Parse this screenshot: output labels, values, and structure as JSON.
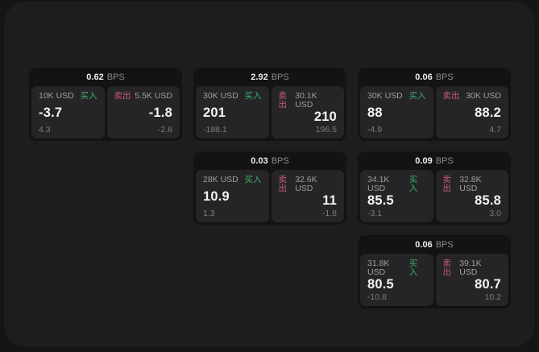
{
  "app": {
    "description_labels": {
      "buy": "买入",
      "sell": "卖出",
      "bps_unit": "BPS"
    },
    "colors": {
      "outer_background": "#151515",
      "surface_background": "#1d1d1e",
      "card_background": "#131314",
      "panel_background": "#252527",
      "buy_green": "#3dac6b",
      "sell_red": "#c85b70"
    }
  },
  "cards": [
    {
      "grid": {
        "row": 1,
        "col": 1
      },
      "bps": "0.62",
      "bps_unit": "BPS",
      "buy": {
        "amount": "10K USD",
        "side": "买入",
        "price": "-3.7",
        "delta": "4.3"
      },
      "sell": {
        "side": "卖出",
        "amount": "5.5K USD",
        "price": "-1.8",
        "delta": "-2.6"
      }
    },
    {
      "grid": {
        "row": 1,
        "col": 2
      },
      "bps": "2.92",
      "bps_unit": "BPS",
      "buy": {
        "amount": "30K USD",
        "side": "买入",
        "price": "201",
        "delta": "-188.1"
      },
      "sell": {
        "side": "卖出",
        "amount": "30.1K USD",
        "price": "210",
        "delta": "196.5"
      }
    },
    {
      "grid": {
        "row": 1,
        "col": 3
      },
      "bps": "0.06",
      "bps_unit": "BPS",
      "buy": {
        "amount": "30K USD",
        "side": "买入",
        "price": "88",
        "delta": "-4.9"
      },
      "sell": {
        "side": "卖出",
        "amount": "30K USD",
        "price": "88.2",
        "delta": "4.7"
      }
    },
    {
      "grid": {
        "row": 2,
        "col": 2
      },
      "bps": "0.03",
      "bps_unit": "BPS",
      "buy": {
        "amount": "28K USD",
        "side": "买入",
        "price": "10.9",
        "delta": "1.3"
      },
      "sell": {
        "side": "卖出",
        "amount": "32.6K USD",
        "price": "11",
        "delta": "-1.8"
      }
    },
    {
      "grid": {
        "row": 2,
        "col": 3
      },
      "bps": "0.09",
      "bps_unit": "BPS",
      "buy": {
        "amount": "34.1K USD",
        "side": "买入",
        "price": "85.5",
        "delta": "-3.1"
      },
      "sell": {
        "side": "卖出",
        "amount": "32.8K USD",
        "price": "85.8",
        "delta": "3.0"
      }
    },
    {
      "grid": {
        "row": 3,
        "col": 3
      },
      "bps": "0.06",
      "bps_unit": "BPS",
      "buy": {
        "amount": "31.8K USD",
        "side": "买入",
        "price": "80.5",
        "delta": "-10.8"
      },
      "sell": {
        "side": "卖出",
        "amount": "39.1K USD",
        "price": "80.7",
        "delta": "10.2"
      }
    }
  ]
}
